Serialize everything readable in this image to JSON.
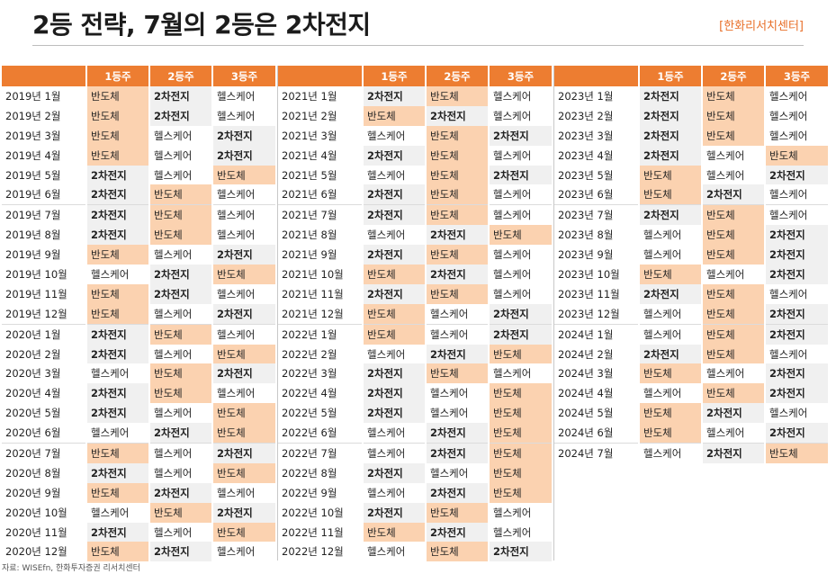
{
  "header": {
    "title": "2등 전략, 7월의 2등은 2차전지",
    "brand": "[한화리서치센터]"
  },
  "legend": {
    "semiconductor": "반도체",
    "battery": "2차전지",
    "healthcare": "헬스케어"
  },
  "colors": {
    "header_bg": "#ed7d31",
    "semiconductor_bg": "#fbd2b0",
    "battery_bg": "#f0f0f0"
  },
  "columns": [
    "1등주",
    "2등주",
    "3등주"
  ],
  "panels": [
    {
      "rows": [
        {
          "label": "2019년 1월",
          "ranks": [
            "반도체",
            "2차전지",
            "헬스케어"
          ]
        },
        {
          "label": "2019년 2월",
          "ranks": [
            "반도체",
            "2차전지",
            "헬스케어"
          ]
        },
        {
          "label": "2019년 3월",
          "ranks": [
            "반도체",
            "헬스케어",
            "2차전지"
          ]
        },
        {
          "label": "2019년 4월",
          "ranks": [
            "반도체",
            "헬스케어",
            "2차전지"
          ]
        },
        {
          "label": "2019년 5월",
          "ranks": [
            "2차전지",
            "헬스케어",
            "반도체"
          ]
        },
        {
          "label": "2019년 6월",
          "ranks": [
            "2차전지",
            "반도체",
            "헬스케어"
          ]
        },
        {
          "label": "2019년 7월",
          "ranks": [
            "2차전지",
            "반도체",
            "헬스케어"
          ]
        },
        {
          "label": "2019년 8월",
          "ranks": [
            "2차전지",
            "반도체",
            "헬스케어"
          ]
        },
        {
          "label": "2019년 9월",
          "ranks": [
            "반도체",
            "헬스케어",
            "2차전지"
          ]
        },
        {
          "label": "2019년 10월",
          "ranks": [
            "헬스케어",
            "2차전지",
            "반도체"
          ]
        },
        {
          "label": "2019년 11월",
          "ranks": [
            "반도체",
            "2차전지",
            "헬스케어"
          ]
        },
        {
          "label": "2019년 12월",
          "ranks": [
            "반도체",
            "헬스케어",
            "2차전지"
          ]
        },
        {
          "label": "2020년 1월",
          "ranks": [
            "2차전지",
            "반도체",
            "헬스케어"
          ]
        },
        {
          "label": "2020년 2월",
          "ranks": [
            "2차전지",
            "헬스케어",
            "반도체"
          ]
        },
        {
          "label": "2020년 3월",
          "ranks": [
            "헬스케어",
            "반도체",
            "2차전지"
          ]
        },
        {
          "label": "2020년 4월",
          "ranks": [
            "2차전지",
            "반도체",
            "헬스케어"
          ]
        },
        {
          "label": "2020년 5월",
          "ranks": [
            "2차전지",
            "헬스케어",
            "반도체"
          ]
        },
        {
          "label": "2020년 6월",
          "ranks": [
            "헬스케어",
            "2차전지",
            "반도체"
          ]
        },
        {
          "label": "2020년 7월",
          "ranks": [
            "반도체",
            "헬스케어",
            "2차전지"
          ]
        },
        {
          "label": "2020년 8월",
          "ranks": [
            "2차전지",
            "헬스케어",
            "반도체"
          ]
        },
        {
          "label": "2020년 9월",
          "ranks": [
            "반도체",
            "2차전지",
            "헬스케어"
          ]
        },
        {
          "label": "2020년 10월",
          "ranks": [
            "헬스케어",
            "반도체",
            "2차전지"
          ]
        },
        {
          "label": "2020년 11월",
          "ranks": [
            "2차전지",
            "헬스케어",
            "반도체"
          ]
        },
        {
          "label": "2020년 12월",
          "ranks": [
            "반도체",
            "2차전지",
            "헬스케어"
          ]
        }
      ]
    },
    {
      "rows": [
        {
          "label": "2021년 1월",
          "ranks": [
            "2차전지",
            "반도체",
            "헬스케어"
          ]
        },
        {
          "label": "2021년 2월",
          "ranks": [
            "반도체",
            "2차전지",
            "헬스케어"
          ]
        },
        {
          "label": "2021년 3월",
          "ranks": [
            "헬스케어",
            "반도체",
            "2차전지"
          ]
        },
        {
          "label": "2021년 4월",
          "ranks": [
            "2차전지",
            "반도체",
            "헬스케어"
          ]
        },
        {
          "label": "2021년 5월",
          "ranks": [
            "헬스케어",
            "반도체",
            "2차전지"
          ]
        },
        {
          "label": "2021년 6월",
          "ranks": [
            "2차전지",
            "반도체",
            "헬스케어"
          ]
        },
        {
          "label": "2021년 7월",
          "ranks": [
            "2차전지",
            "반도체",
            "헬스케어"
          ]
        },
        {
          "label": "2021년 8월",
          "ranks": [
            "헬스케어",
            "2차전지",
            "반도체"
          ]
        },
        {
          "label": "2021년 9월",
          "ranks": [
            "2차전지",
            "반도체",
            "헬스케어"
          ]
        },
        {
          "label": "2021년 10월",
          "ranks": [
            "반도체",
            "2차전지",
            "헬스케어"
          ]
        },
        {
          "label": "2021년 11월",
          "ranks": [
            "2차전지",
            "반도체",
            "헬스케어"
          ]
        },
        {
          "label": "2021년 12월",
          "ranks": [
            "반도체",
            "헬스케어",
            "2차전지"
          ]
        },
        {
          "label": "2022년 1월",
          "ranks": [
            "반도체",
            "헬스케어",
            "2차전지"
          ]
        },
        {
          "label": "2022년 2월",
          "ranks": [
            "헬스케어",
            "2차전지",
            "반도체"
          ]
        },
        {
          "label": "2022년 3월",
          "ranks": [
            "2차전지",
            "반도체",
            "헬스케어"
          ]
        },
        {
          "label": "2022년 4월",
          "ranks": [
            "2차전지",
            "헬스케어",
            "반도체"
          ]
        },
        {
          "label": "2022년 5월",
          "ranks": [
            "2차전지",
            "헬스케어",
            "반도체"
          ]
        },
        {
          "label": "2022년 6월",
          "ranks": [
            "헬스케어",
            "2차전지",
            "반도체"
          ]
        },
        {
          "label": "2022년 7월",
          "ranks": [
            "헬스케어",
            "2차전지",
            "반도체"
          ]
        },
        {
          "label": "2022년 8월",
          "ranks": [
            "2차전지",
            "헬스케어",
            "반도체"
          ]
        },
        {
          "label": "2022년 9월",
          "ranks": [
            "헬스케어",
            "2차전지",
            "반도체"
          ]
        },
        {
          "label": "2022년 10월",
          "ranks": [
            "2차전지",
            "반도체",
            "헬스케어"
          ]
        },
        {
          "label": "2022년 11월",
          "ranks": [
            "반도체",
            "2차전지",
            "헬스케어"
          ]
        },
        {
          "label": "2022년 12월",
          "ranks": [
            "헬스케어",
            "반도체",
            "2차전지"
          ]
        }
      ]
    },
    {
      "rows": [
        {
          "label": "2023년 1월",
          "ranks": [
            "2차전지",
            "반도체",
            "헬스케어"
          ]
        },
        {
          "label": "2023년 2월",
          "ranks": [
            "2차전지",
            "반도체",
            "헬스케어"
          ]
        },
        {
          "label": "2023년 3월",
          "ranks": [
            "2차전지",
            "반도체",
            "헬스케어"
          ]
        },
        {
          "label": "2023년 4월",
          "ranks": [
            "2차전지",
            "헬스케어",
            "반도체"
          ]
        },
        {
          "label": "2023년 5월",
          "ranks": [
            "반도체",
            "헬스케어",
            "2차전지"
          ]
        },
        {
          "label": "2023년 6월",
          "ranks": [
            "반도체",
            "2차전지",
            "헬스케어"
          ]
        },
        {
          "label": "2023년 7월",
          "ranks": [
            "2차전지",
            "반도체",
            "헬스케어"
          ]
        },
        {
          "label": "2023년 8월",
          "ranks": [
            "헬스케어",
            "반도체",
            "2차전지"
          ]
        },
        {
          "label": "2023년 9월",
          "ranks": [
            "헬스케어",
            "반도체",
            "2차전지"
          ]
        },
        {
          "label": "2023년 10월",
          "ranks": [
            "반도체",
            "헬스케어",
            "2차전지"
          ]
        },
        {
          "label": "2023년 11월",
          "ranks": [
            "2차전지",
            "반도체",
            "헬스케어"
          ]
        },
        {
          "label": "2023년 12월",
          "ranks": [
            "헬스케어",
            "반도체",
            "2차전지"
          ]
        },
        {
          "label": "2024년 1월",
          "ranks": [
            "헬스케어",
            "반도체",
            "2차전지"
          ]
        },
        {
          "label": "2024년 2월",
          "ranks": [
            "2차전지",
            "반도체",
            "헬스케어"
          ]
        },
        {
          "label": "2024년 3월",
          "ranks": [
            "반도체",
            "헬스케어",
            "2차전지"
          ]
        },
        {
          "label": "2024년 4월",
          "ranks": [
            "헬스케어",
            "반도체",
            "2차전지"
          ]
        },
        {
          "label": "2024년 5월",
          "ranks": [
            "반도체",
            "2차전지",
            "헬스케어"
          ]
        },
        {
          "label": "2024년 6월",
          "ranks": [
            "반도체",
            "헬스케어",
            "2차전지"
          ]
        },
        {
          "label": "2024년 7월",
          "ranks": [
            "헬스케어",
            "2차전지",
            "반도체"
          ]
        }
      ]
    }
  ],
  "footer": {
    "source": "자료: WISEfn, 한화투자증권 리서치센터"
  }
}
